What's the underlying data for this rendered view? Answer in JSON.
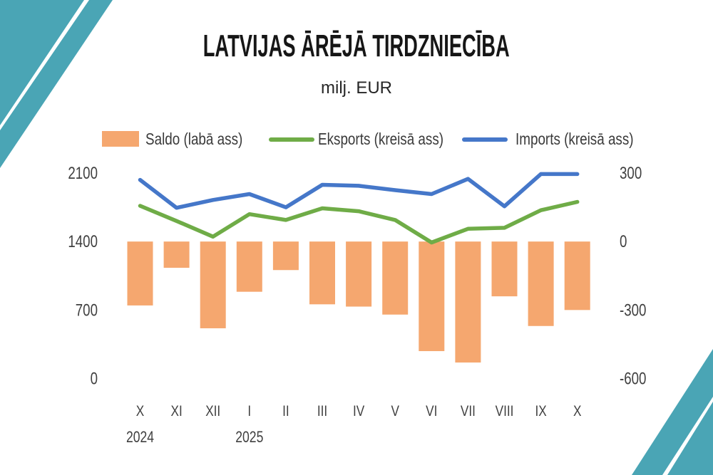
{
  "slide": {
    "title": "LATVIJAS ĀRĒJĀ TIRDZNIECĪBA",
    "subtitle": "milj. EUR"
  },
  "colors": {
    "accent_teal": "#4AA5B5",
    "saldo_bar": "#F5A76F",
    "eksports_line": "#6FAC47",
    "imports_line": "#4577C9",
    "axis_text": "#3f3f3f"
  },
  "chart_data": {
    "type": "combo-bar-line",
    "title": "LATVIJAS ĀRĒJĀ TIRDZNIECĪBA",
    "subtitle": "milj. EUR",
    "categories": [
      "X",
      "XI",
      "XII",
      "I",
      "II",
      "III",
      "IV",
      "V",
      "VI",
      "VII",
      "VIII",
      "IX",
      "X"
    ],
    "year_labels": [
      {
        "text": "2024",
        "under_index": 0
      },
      {
        "text": "2025",
        "under_index": 3
      }
    ],
    "series": [
      {
        "name": "Saldo (labā ass)",
        "type": "bar",
        "axis": "right",
        "color": "#F5A76F",
        "values": [
          -280,
          -115,
          -380,
          -220,
          -125,
          -275,
          -285,
          -320,
          -480,
          -530,
          -240,
          -370,
          -300
        ]
      },
      {
        "name": "Eksports (kreisā ass)",
        "type": "line",
        "axis": "left",
        "color": "#6FAC47",
        "values": [
          1765,
          1610,
          1450,
          1680,
          1620,
          1740,
          1710,
          1620,
          1390,
          1530,
          1540,
          1720,
          1805
        ]
      },
      {
        "name": "Imports (kreisā ass)",
        "type": "line",
        "axis": "left",
        "color": "#4577C9",
        "values": [
          2030,
          1745,
          1825,
          1885,
          1750,
          1980,
          1970,
          1925,
          1885,
          2040,
          1760,
          2090,
          2090
        ]
      }
    ],
    "left_axis": {
      "ticks": [
        2100,
        1400,
        700,
        0
      ],
      "min": 0,
      "max": 2100
    },
    "right_axis": {
      "ticks": [
        300,
        0,
        -300,
        -600
      ],
      "min": -600,
      "max": 300
    },
    "grid": false,
    "legend_position": "top"
  }
}
